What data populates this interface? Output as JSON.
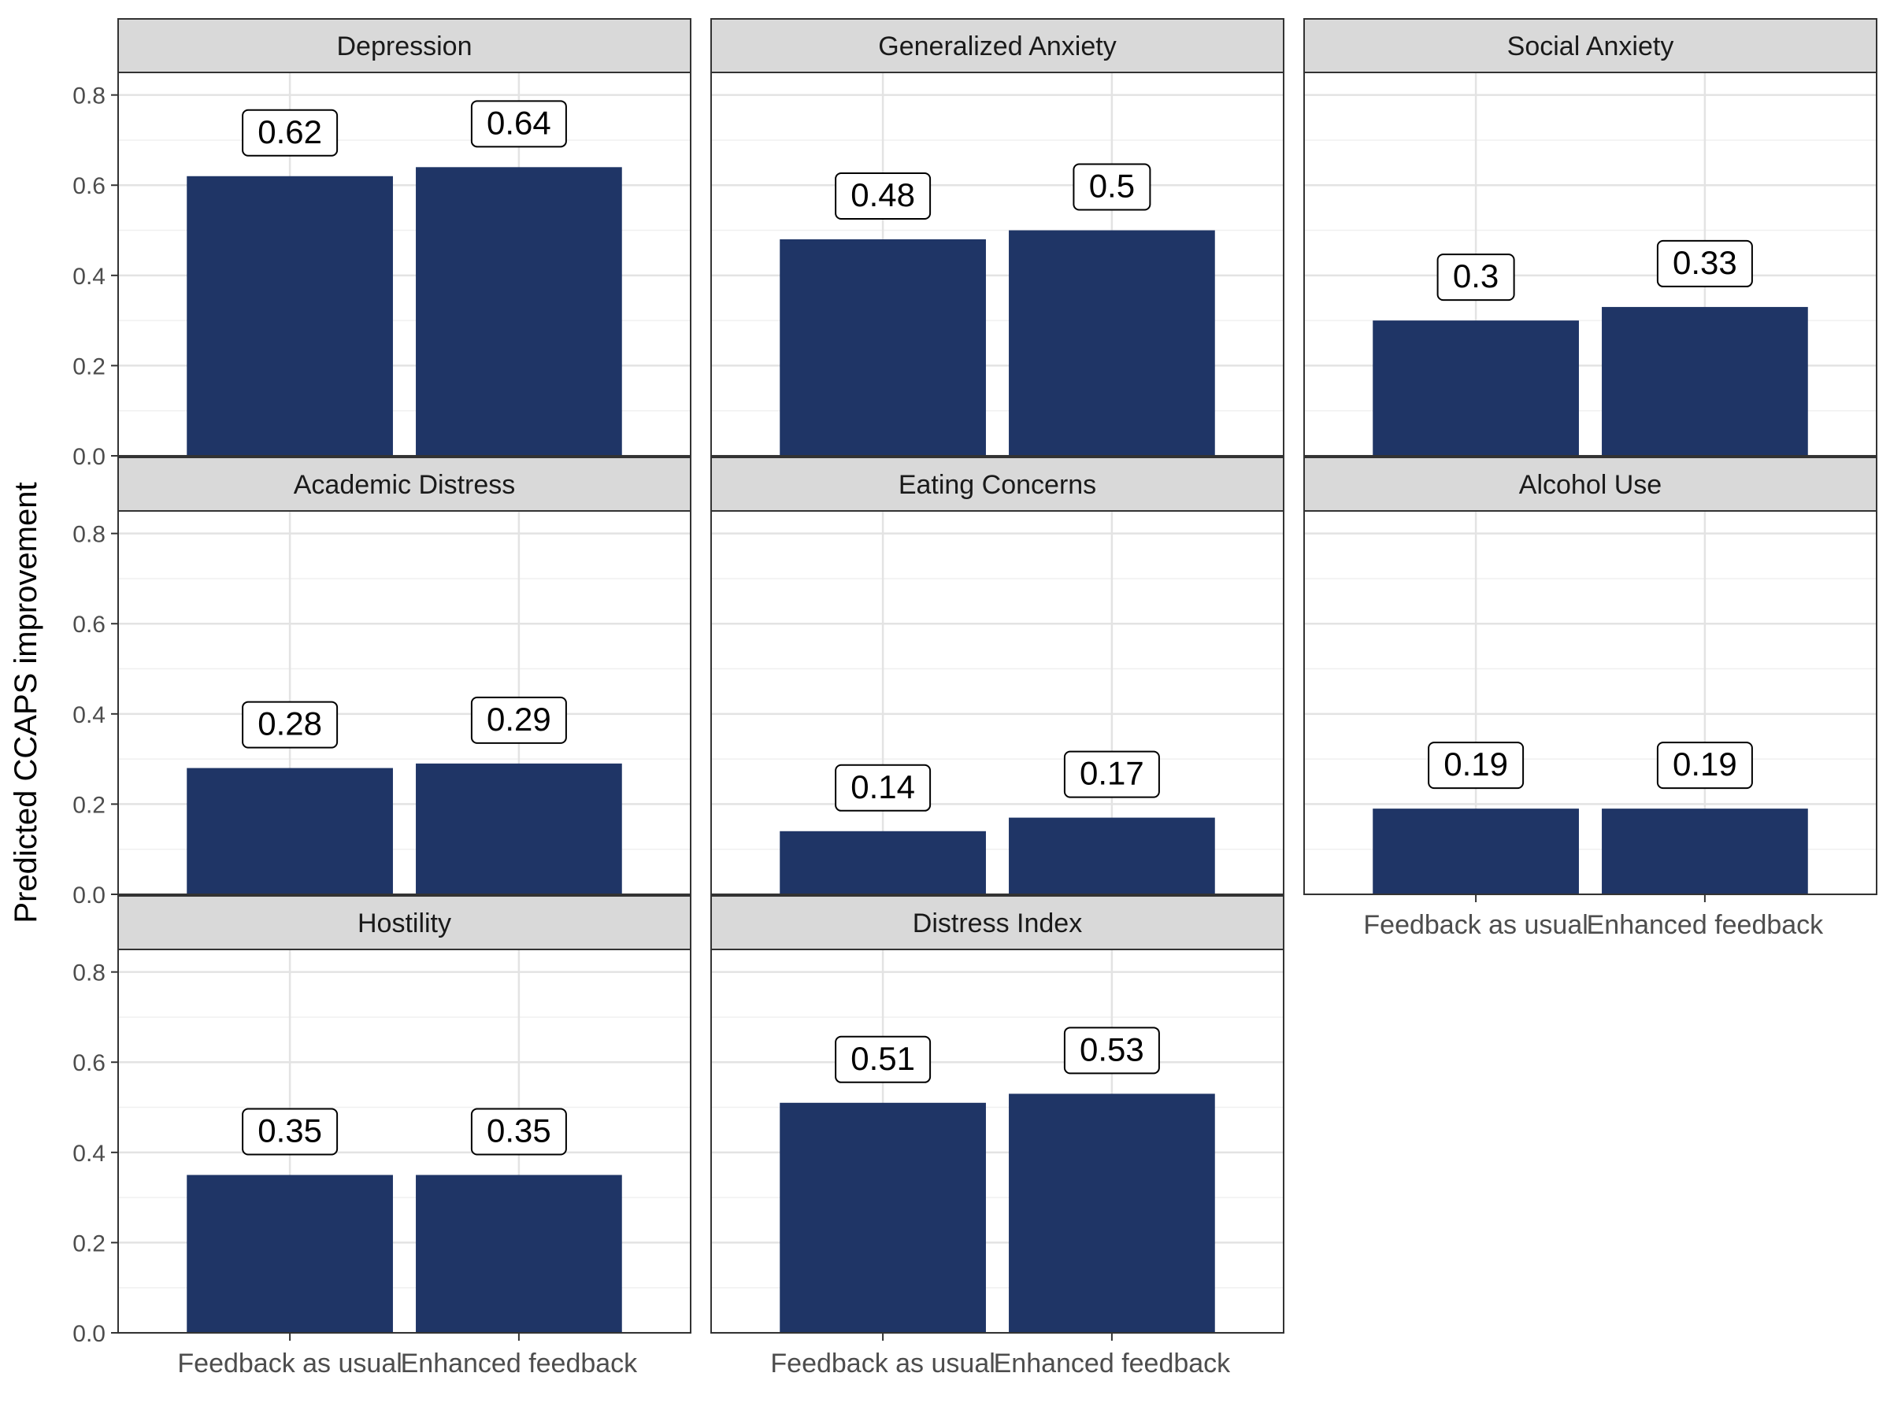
{
  "chart_data": {
    "type": "bar",
    "ylabel": "Predicted CCAPS improvement",
    "xlabel": "",
    "ylim": [
      0,
      0.85
    ],
    "y_ticks": [
      0.0,
      0.2,
      0.4,
      0.6,
      0.8
    ],
    "y_tick_labels": [
      "0.0",
      "0.2",
      "0.4",
      "0.6",
      "0.8"
    ],
    "categories": [
      "Feedback as usual",
      "Enhanced feedback"
    ],
    "grid": true,
    "bar_color": "#1f3566",
    "facets": [
      {
        "title": "Depression",
        "values": [
          0.62,
          0.64
        ],
        "labels": [
          "0.62",
          "0.64"
        ]
      },
      {
        "title": "Generalized Anxiety",
        "values": [
          0.48,
          0.5
        ],
        "labels": [
          "0.48",
          "0.5"
        ]
      },
      {
        "title": "Social Anxiety",
        "values": [
          0.3,
          0.33
        ],
        "labels": [
          "0.3",
          "0.33"
        ]
      },
      {
        "title": "Academic Distress",
        "values": [
          0.28,
          0.29
        ],
        "labels": [
          "0.28",
          "0.29"
        ]
      },
      {
        "title": "Eating Concerns",
        "values": [
          0.14,
          0.17
        ],
        "labels": [
          "0.14",
          "0.17"
        ]
      },
      {
        "title": "Alcohol Use",
        "values": [
          0.19,
          0.19
        ],
        "labels": [
          "0.19",
          "0.19"
        ]
      },
      {
        "title": "Hostility",
        "values": [
          0.35,
          0.35
        ],
        "labels": [
          "0.35",
          "0.35"
        ]
      },
      {
        "title": "Distress Index",
        "values": [
          0.51,
          0.53
        ],
        "labels": [
          "0.51",
          "0.53"
        ]
      }
    ]
  }
}
